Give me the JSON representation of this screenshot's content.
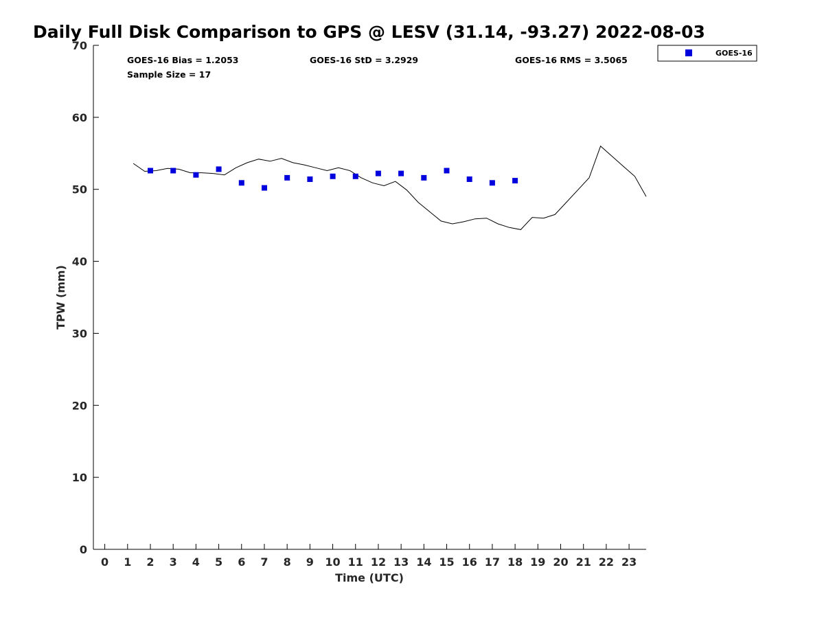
{
  "chart_data": {
    "type": "scatter",
    "title": "Daily Full Disk Comparison to GPS @ LESV (31.14, -93.27) 2022-08-03",
    "xlabel": "Time (UTC)",
    "ylabel": "TPW (mm)",
    "xlim": [
      -0.5,
      23.75
    ],
    "ylim": [
      0,
      70
    ],
    "x_ticks": [
      "0",
      "1",
      "2",
      "3",
      "4",
      "5",
      "6",
      "7",
      "8",
      "9",
      "10",
      "11",
      "12",
      "13",
      "14",
      "15",
      "16",
      "17",
      "18",
      "19",
      "20",
      "21",
      "22",
      "23"
    ],
    "y_ticks": [
      "0",
      "10",
      "20",
      "30",
      "40",
      "50",
      "60",
      "70"
    ],
    "grid": false,
    "legend_position": "top-right, outside plot",
    "stats": {
      "bias": "GOES-16 Bias = 1.2053",
      "std": "GOES-16 StD = 3.2929",
      "rms": "GOES-16 RMS = 3.5065",
      "sample": "Sample Size = 17"
    },
    "series": [
      {
        "name": "GOES-16",
        "kind": "scatter",
        "color": "#0000dd",
        "x": [
          2,
          3,
          4,
          5,
          6,
          7,
          8,
          9,
          10,
          11,
          12,
          13,
          14,
          15,
          16,
          17,
          18
        ],
        "y": [
          52.6,
          52.6,
          52.0,
          52.8,
          50.9,
          50.2,
          51.6,
          51.4,
          51.8,
          51.8,
          52.2,
          52.2,
          51.6,
          52.6,
          51.4,
          50.9,
          51.2
        ]
      },
      {
        "kind": "line",
        "color": "#000000",
        "x": [
          1.25,
          1.75,
          2.25,
          2.75,
          3.25,
          3.75,
          4.25,
          4.75,
          5.25,
          5.75,
          6.25,
          6.75,
          7.25,
          7.75,
          8.25,
          8.75,
          9.25,
          9.75,
          10.25,
          10.75,
          11.25,
          11.75,
          12.25,
          12.75,
          13.25,
          13.75,
          14.25,
          14.75,
          15.25,
          15.75,
          16.25,
          16.75,
          17.25,
          17.75,
          18.25,
          18.75,
          19.25,
          19.75,
          20.25,
          20.75,
          21.25,
          21.75,
          22.25,
          22.75,
          23.25,
          23.75
        ],
        "y": [
          53.6,
          52.5,
          52.6,
          52.9,
          52.8,
          52.3,
          52.3,
          52.2,
          52.0,
          53.0,
          53.7,
          54.2,
          53.9,
          54.3,
          53.7,
          53.4,
          53.0,
          52.6,
          53.0,
          52.6,
          51.6,
          50.9,
          50.5,
          51.1,
          49.9,
          48.2,
          46.9,
          45.6,
          45.2,
          45.5,
          45.9,
          46.0,
          45.2,
          44.7,
          44.4,
          46.1,
          46.0,
          46.5,
          48.2,
          49.9,
          51.6,
          56.0,
          54.6,
          53.2,
          51.8,
          49.0
        ]
      }
    ]
  }
}
